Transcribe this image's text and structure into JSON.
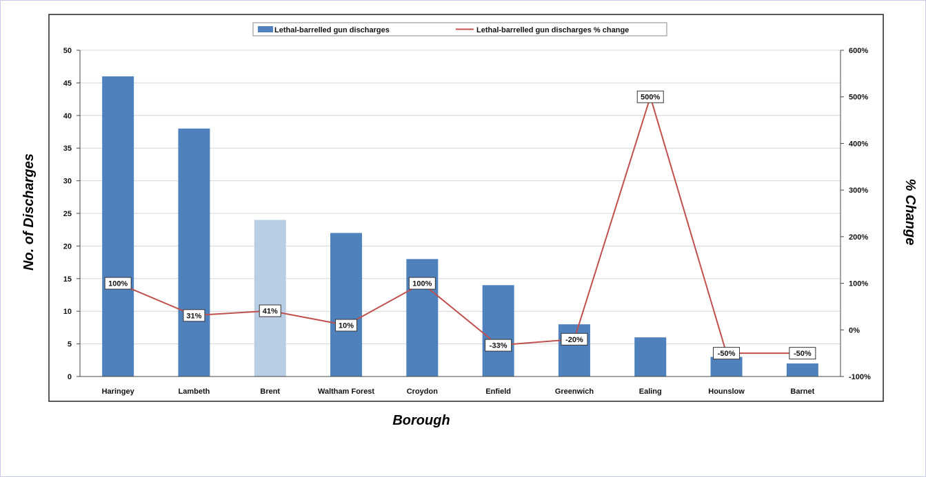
{
  "chart_data": {
    "type": "bar",
    "categories": [
      "Haringey",
      "Lambeth",
      "Brent",
      "Waltham Forest",
      "Croydon",
      "Enfield",
      "Greenwich",
      "Ealing",
      "Hounslow",
      "Barnet"
    ],
    "series": [
      {
        "name": "Lethal-barrelled gun discharges",
        "type": "bar",
        "axis": "left",
        "values": [
          46,
          38,
          24,
          22,
          18,
          14,
          8,
          6,
          3,
          2
        ],
        "color": "#4f81bd",
        "highlight": {
          "category": "Brent",
          "color": "#b9cde5"
        }
      },
      {
        "name": "Lethal-barrelled gun discharges % change",
        "type": "line",
        "axis": "right",
        "values": [
          100,
          31,
          41,
          10,
          100,
          -33,
          -20,
          500,
          -50,
          -50
        ],
        "labels": [
          "100%",
          "31%",
          "41%",
          "10%",
          "100%",
          "-33%",
          "-20%",
          "500%",
          "-50%",
          "-50%"
        ],
        "color": "#c0504d"
      }
    ],
    "xlabel": "Borough",
    "ylabel": "No. of Discharges",
    "y2label": "% Change",
    "ylim": [
      0,
      50
    ],
    "yticks": [
      0,
      5,
      10,
      15,
      20,
      25,
      30,
      35,
      40,
      45,
      50
    ],
    "y2lim": [
      -100,
      600
    ],
    "y2ticks": [
      "-100%",
      "0%",
      "100%",
      "200%",
      "300%",
      "400%",
      "500%",
      "600%"
    ],
    "grid": true,
    "legend_position": "top"
  }
}
